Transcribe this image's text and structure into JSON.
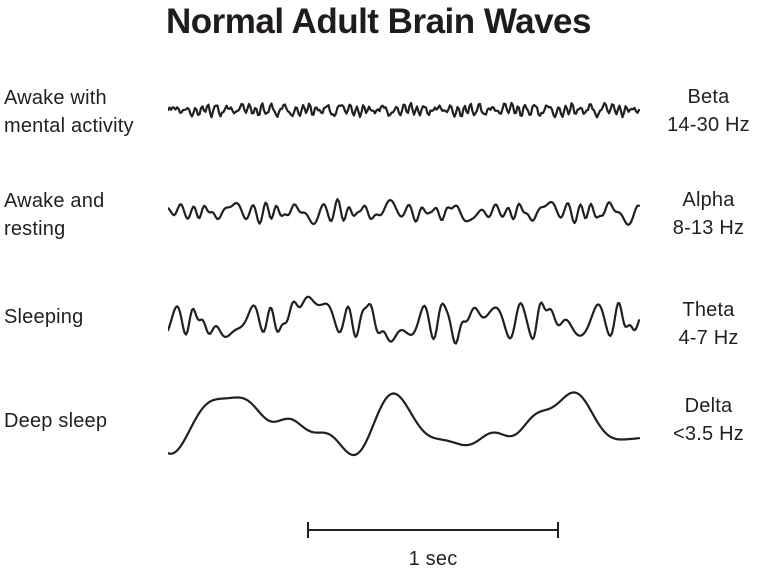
{
  "title": "Normal Adult Brain Waves",
  "ink_color": "#231f20",
  "scale_bar": {
    "label": "1 sec"
  },
  "waves": [
    {
      "id": "beta",
      "state_lines": [
        "Awake with",
        "mental activity"
      ],
      "band": "Beta",
      "freq_range": "14-30 Hz",
      "waveform": {
        "cycles": 52,
        "amp": 7.5,
        "seed": 13,
        "jitter": 2.6,
        "jfreq": 9,
        "components": [
          [
            1,
            0.5
          ],
          [
            0.62,
            0.28
          ],
          [
            1.7,
            0.22
          ]
        ]
      }
    },
    {
      "id": "alpha",
      "state_lines": [
        "Awake and",
        "resting"
      ],
      "band": "Alpha",
      "freq_range": "8-13 Hz",
      "waveform": {
        "cycles": 27,
        "amp": 13,
        "seed": 5,
        "jitter": 2.2,
        "jfreq": 6,
        "components": [
          [
            1,
            0.55
          ],
          [
            0.55,
            0.25
          ],
          [
            1.5,
            0.2
          ]
        ]
      }
    },
    {
      "id": "theta",
      "state_lines": [
        "Sleeping"
      ],
      "band": "Theta",
      "freq_range": "4-7 Hz",
      "waveform": {
        "cycles": 13.5,
        "amp": 24,
        "seed": 9,
        "jitter": 2.3,
        "jfreq": 5.5,
        "components": [
          [
            1,
            0.58
          ],
          [
            0.52,
            0.24
          ],
          [
            2.3,
            0.18
          ]
        ]
      }
    },
    {
      "id": "delta",
      "state_lines": [
        "Deep sleep"
      ],
      "band": "Delta",
      "freq_range": "<3.5 Hz",
      "waveform": {
        "cycles": 3.1,
        "amp": 34,
        "seed": 3,
        "jitter": 0.9,
        "jfreq": 2,
        "components": [
          [
            1,
            0.72
          ],
          [
            1.9,
            0.16
          ],
          [
            3.1,
            0.12
          ]
        ]
      }
    }
  ]
}
